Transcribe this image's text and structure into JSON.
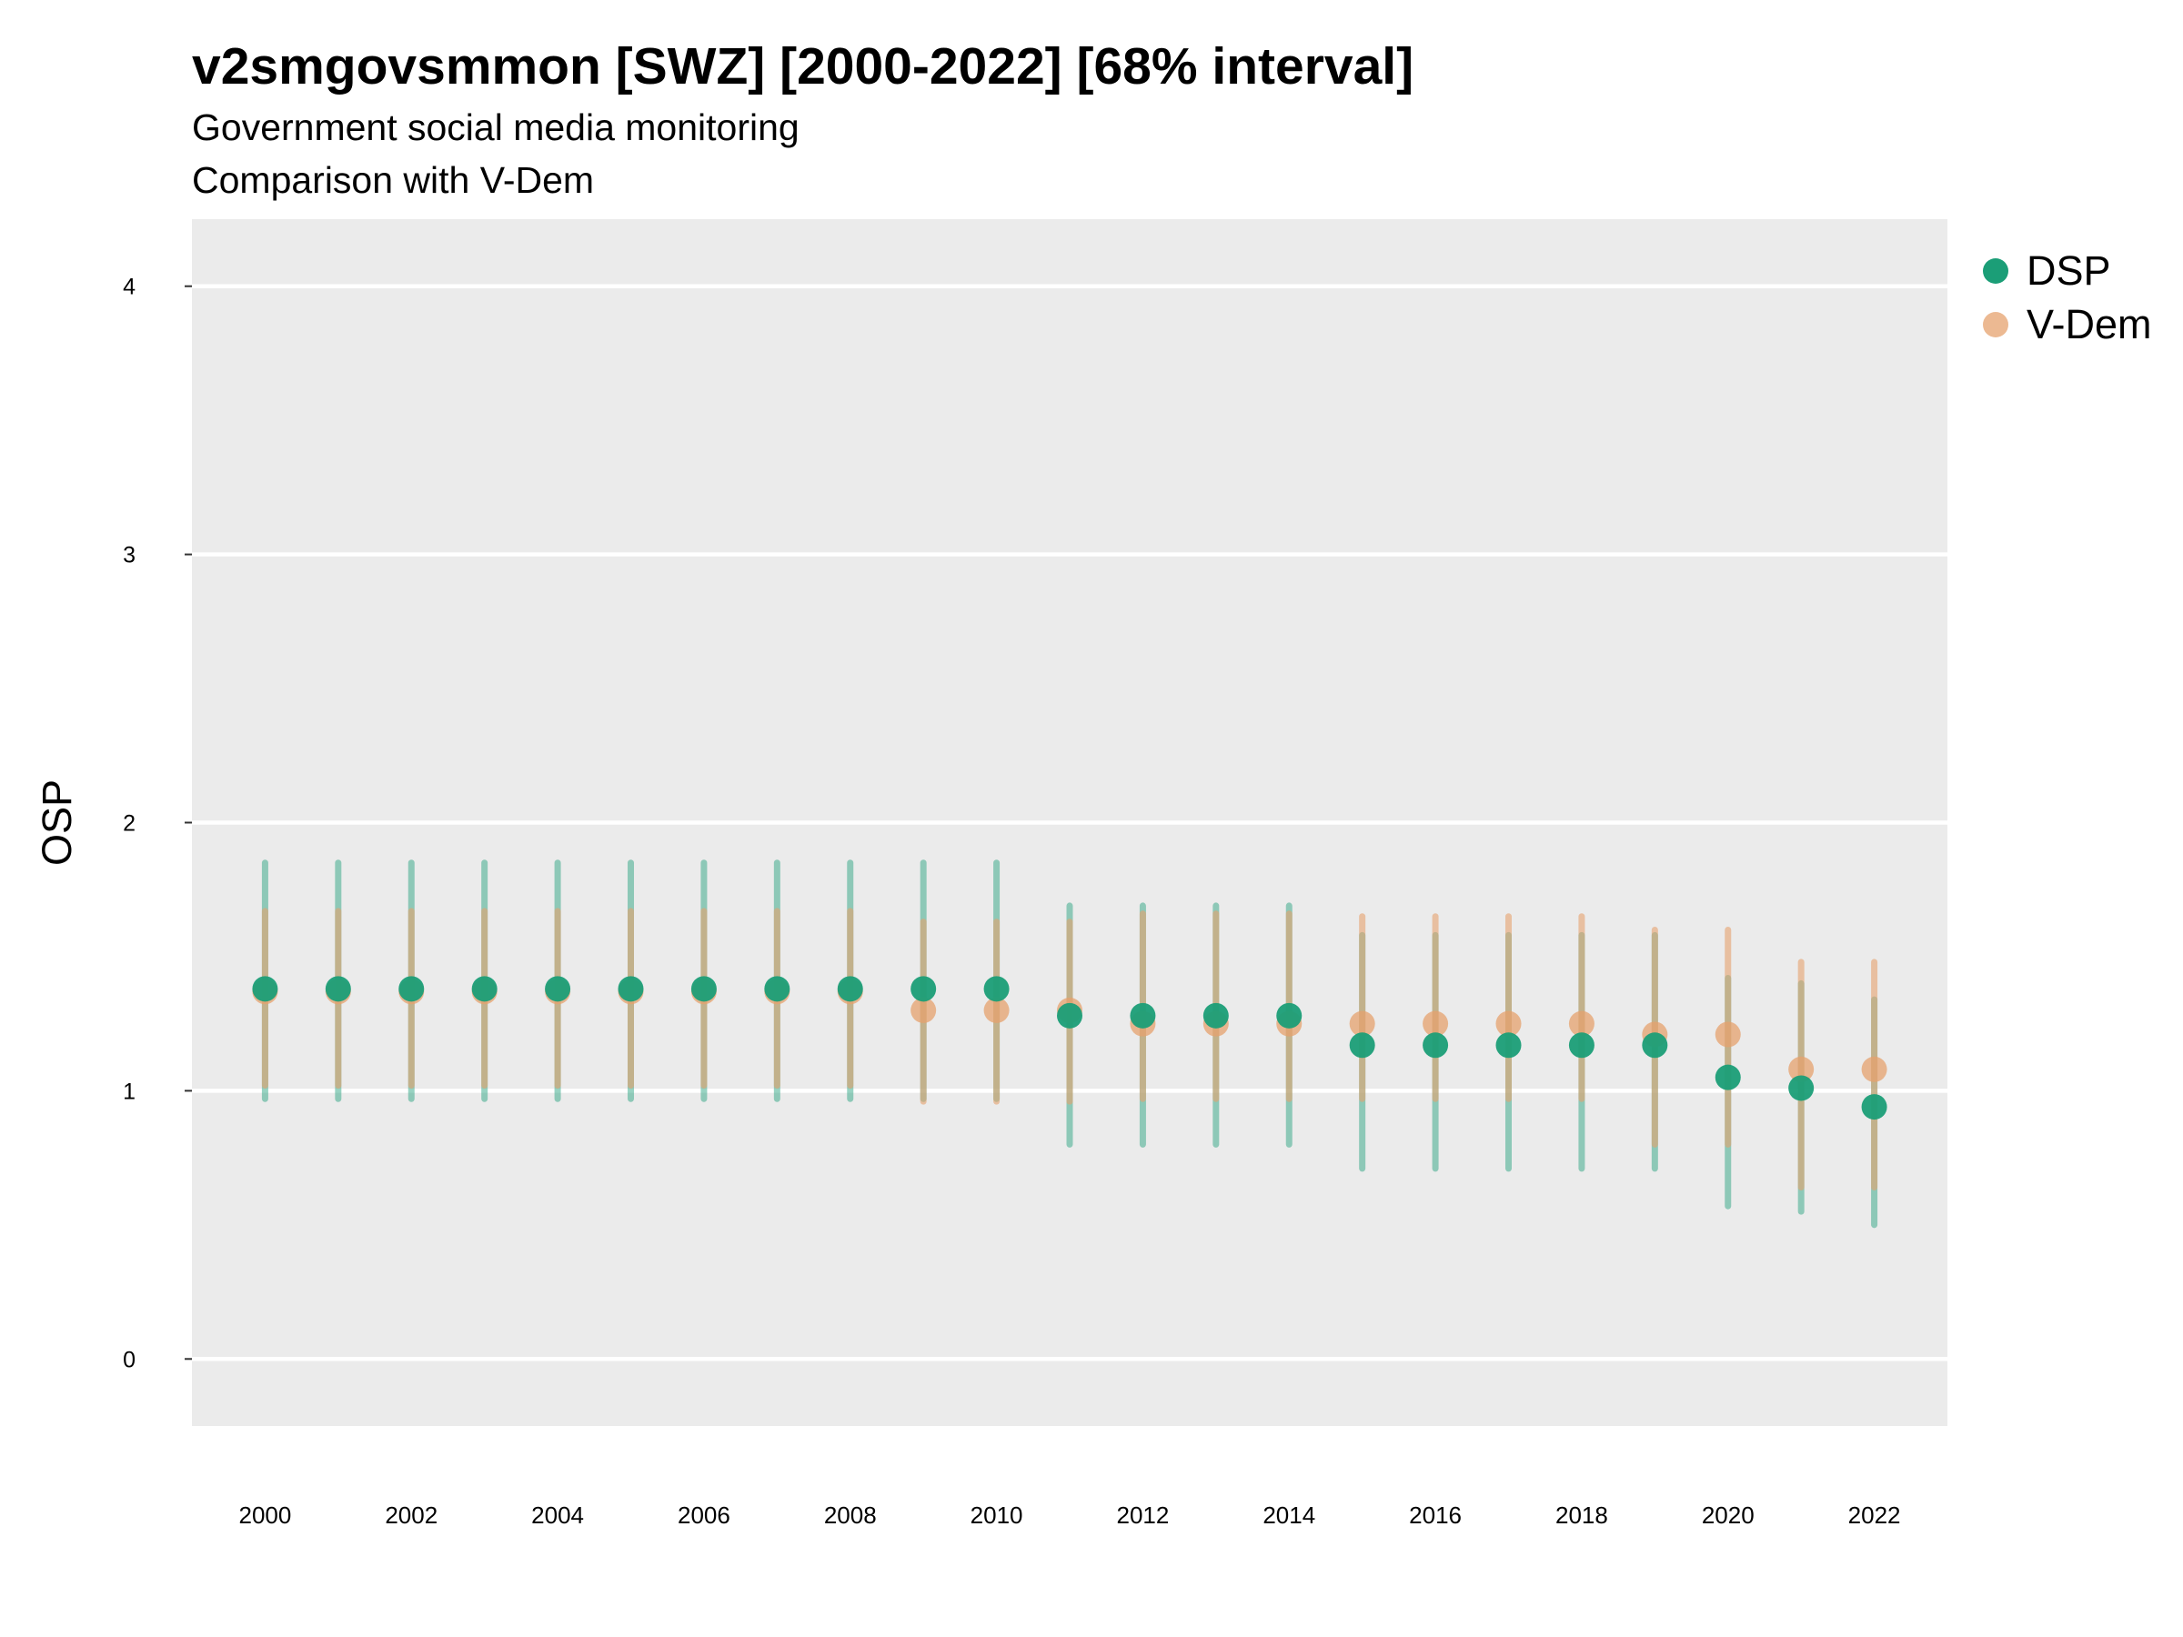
{
  "chart_data": {
    "type": "scatter",
    "title": "v2smgovsmmon [SWZ] [2000-2022] [68% interval]",
    "subtitle": [
      "Government social media monitoring",
      "Comparison with V-Dem"
    ],
    "ylabel": "OSP",
    "xlabel": "",
    "xlim": [
      1999,
      2023
    ],
    "ylim": [
      -0.25,
      4.25
    ],
    "xticks": [
      "2000",
      "2002",
      "2004",
      "2006",
      "2008",
      "2010",
      "2012",
      "2014",
      "2016",
      "2018",
      "2020",
      "2022"
    ],
    "yticks": [
      "0",
      "1",
      "2",
      "3",
      "4"
    ],
    "grid": true,
    "legend_position": "right",
    "colors": {
      "DSP": "#1b9e77",
      "V-Dem": "#e6a16e"
    },
    "x": [
      2000,
      2001,
      2002,
      2003,
      2004,
      2005,
      2006,
      2007,
      2008,
      2009,
      2010,
      2011,
      2012,
      2013,
      2014,
      2015,
      2016,
      2017,
      2018,
      2019,
      2020,
      2021,
      2022
    ],
    "series": [
      {
        "name": "DSP",
        "values": [
          1.38,
          1.38,
          1.38,
          1.38,
          1.38,
          1.38,
          1.38,
          1.38,
          1.38,
          1.38,
          1.38,
          1.28,
          1.28,
          1.28,
          1.28,
          1.17,
          1.17,
          1.17,
          1.17,
          1.17,
          1.05,
          1.01,
          0.94
        ],
        "lower": [
          0.97,
          0.97,
          0.97,
          0.97,
          0.97,
          0.97,
          0.97,
          0.97,
          0.97,
          0.97,
          0.97,
          0.8,
          0.8,
          0.8,
          0.8,
          0.71,
          0.71,
          0.71,
          0.71,
          0.71,
          0.57,
          0.55,
          0.5
        ],
        "upper": [
          1.85,
          1.85,
          1.85,
          1.85,
          1.85,
          1.85,
          1.85,
          1.85,
          1.85,
          1.85,
          1.85,
          1.69,
          1.69,
          1.69,
          1.69,
          1.58,
          1.58,
          1.58,
          1.58,
          1.58,
          1.42,
          1.4,
          1.34
        ]
      },
      {
        "name": "V-Dem",
        "values": [
          1.37,
          1.37,
          1.37,
          1.37,
          1.37,
          1.37,
          1.37,
          1.37,
          1.37,
          1.3,
          1.3,
          1.3,
          1.25,
          1.25,
          1.25,
          1.25,
          1.25,
          1.25,
          1.25,
          1.21,
          1.21,
          1.08,
          1.08
        ],
        "lower": [
          1.02,
          1.02,
          1.02,
          1.02,
          1.02,
          1.02,
          1.02,
          1.02,
          1.02,
          0.96,
          0.96,
          0.96,
          0.97,
          0.97,
          0.97,
          0.97,
          0.97,
          0.97,
          0.97,
          0.8,
          0.8,
          0.64,
          0.64
        ],
        "upper": [
          1.67,
          1.67,
          1.67,
          1.67,
          1.67,
          1.67,
          1.67,
          1.67,
          1.67,
          1.63,
          1.63,
          1.63,
          1.66,
          1.66,
          1.66,
          1.65,
          1.65,
          1.65,
          1.65,
          1.6,
          1.6,
          1.48,
          1.48
        ]
      }
    ]
  }
}
